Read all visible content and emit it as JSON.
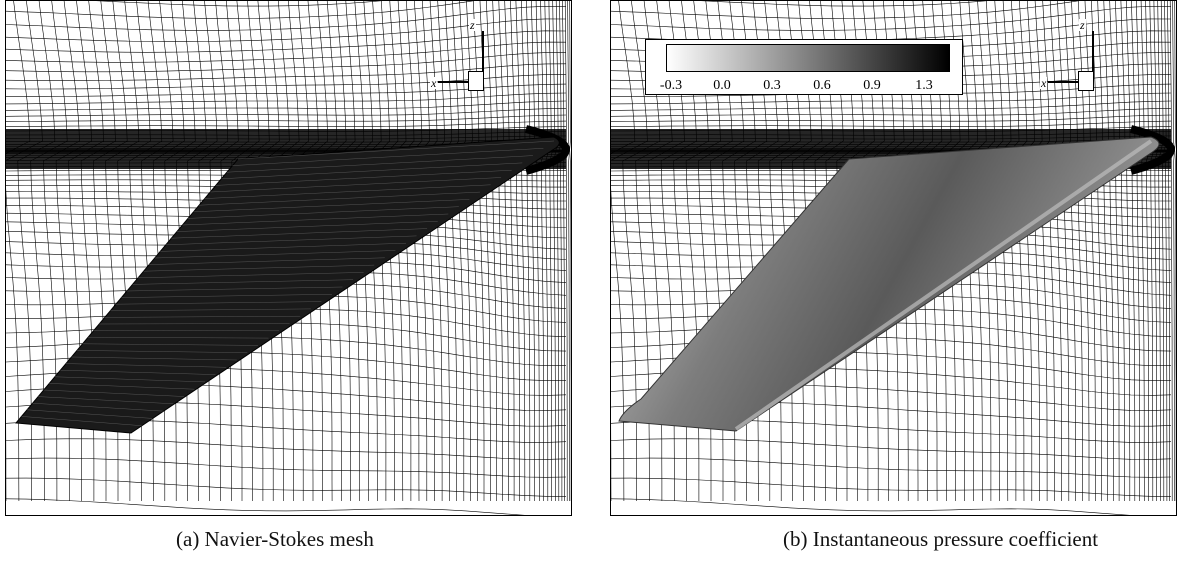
{
  "figure": {
    "panels": [
      {
        "id": "a",
        "caption": "(a) Navier-Stokes mesh",
        "axes_triad": {
          "x_label": "x",
          "z_label": "z"
        }
      },
      {
        "id": "b",
        "caption": "(b) Instantaneous pressure coefficient",
        "axes_triad": {
          "x_label": "x",
          "z_label": "z"
        },
        "colorbar": {
          "tick_labels": [
            "-0.3",
            "0.0",
            "0.3",
            "0.6",
            "0.9",
            "1.3"
          ],
          "gradient": [
            "#ffffff",
            "#000000"
          ]
        }
      }
    ],
    "colors": {
      "mesh_line": "#000000",
      "background": "#ffffff",
      "surface_gray": "#8a8a8a"
    }
  }
}
